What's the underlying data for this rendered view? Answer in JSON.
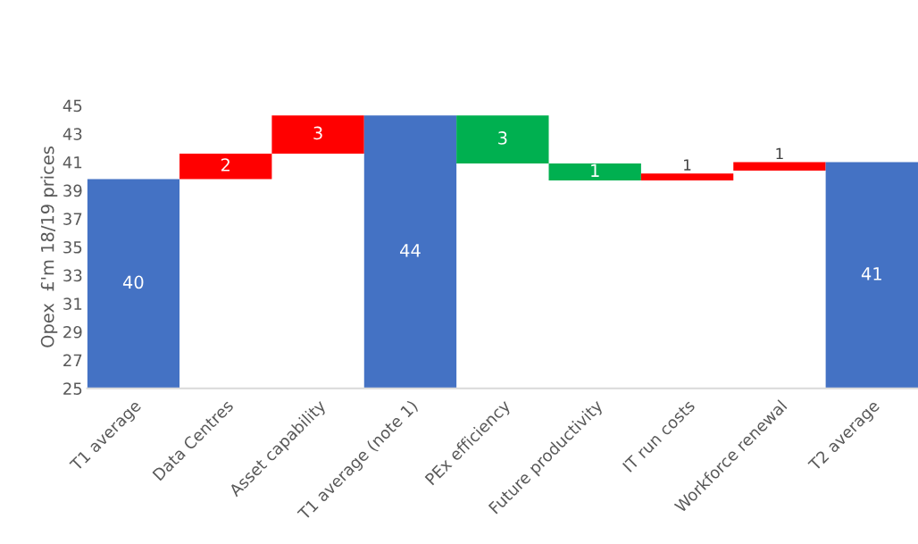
{
  "chart_data": {
    "type": "bar",
    "ylabel": "Opex  £'m 18/19 prices",
    "categories": [
      "T1 average",
      "Data Centres",
      "Asset capability",
      "T1 average (note 1)",
      "PEx efficiency",
      "Future productivity",
      "IT run costs",
      "Workforce renewal",
      "T2 average"
    ],
    "values": [
      39.8,
      1.8,
      2.7,
      44.3,
      -3.4,
      -1.2,
      0.5,
      0.6,
      41.0
    ],
    "base": [
      null,
      39.8,
      41.6,
      null,
      44.3,
      40.9,
      39.7,
      40.4,
      null
    ],
    "colors": [
      "#4472c4",
      "#ff0000",
      "#ff0000",
      "#4472c4",
      "#00b050",
      "#00b050",
      "#ff0000",
      "#ff0000",
      "#4472c4"
    ],
    "value_labels": [
      "40",
      "2",
      "3",
      "44",
      "3",
      "1",
      "1",
      "1",
      "41"
    ],
    "ylim": [
      25,
      45
    ],
    "yticks": [
      25,
      27,
      29,
      31,
      33,
      35,
      37,
      39,
      41,
      43,
      45
    ],
    "grid": false,
    "legend": false
  }
}
